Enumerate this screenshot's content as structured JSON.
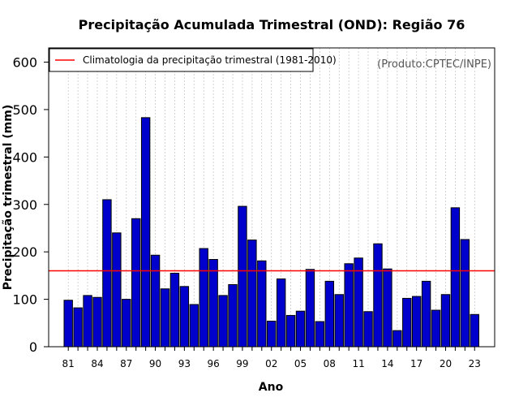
{
  "chart_data": {
    "type": "bar",
    "title": "Precipitação Acumulada Trimestral (OND): Região 76",
    "xlabel": "Ano",
    "ylabel": "Precipitação trimestral (mm)",
    "ylim": [
      0,
      630
    ],
    "yticks": [
      0,
      100,
      200,
      300,
      400,
      500,
      600
    ],
    "categories": [
      "1981",
      "1982",
      "1983",
      "1984",
      "1985",
      "1986",
      "1987",
      "1988",
      "1989",
      "1990",
      "1991",
      "1992",
      "1993",
      "1994",
      "1995",
      "1996",
      "1997",
      "1998",
      "1999",
      "2000",
      "2001",
      "2002",
      "2003",
      "2004",
      "2005",
      "2006",
      "2007",
      "2008",
      "2009",
      "2010",
      "2011",
      "2012",
      "2013",
      "2014",
      "2015",
      "2016",
      "2017",
      "2018",
      "2019",
      "2020",
      "2021",
      "2022",
      "2023"
    ],
    "xtick_labels": [
      "81",
      "84",
      "87",
      "90",
      "93",
      "96",
      "99",
      "02",
      "05",
      "08",
      "11",
      "14",
      "17",
      "20",
      "23"
    ],
    "values": [
      98,
      82,
      108,
      104,
      310,
      240,
      100,
      270,
      483,
      193,
      122,
      155,
      127,
      89,
      207,
      184,
      108,
      131,
      296,
      225,
      181,
      54,
      143,
      66,
      75,
      163,
      53,
      138,
      110,
      175,
      187,
      74,
      217,
      164,
      34,
      102,
      106,
      138,
      77,
      110,
      293,
      226,
      68
    ],
    "climatology": 160,
    "legend": {
      "label": "Climatologia da precipitação trimestral (1981-2010)",
      "position": "top-left"
    },
    "credit": "(Produto:CPTEC/INPE)",
    "colors": {
      "bar_fill": "#0000cc",
      "bar_edge": "#000000",
      "climatology_line": "#ff0000",
      "grid": "#c8c8c8"
    }
  }
}
